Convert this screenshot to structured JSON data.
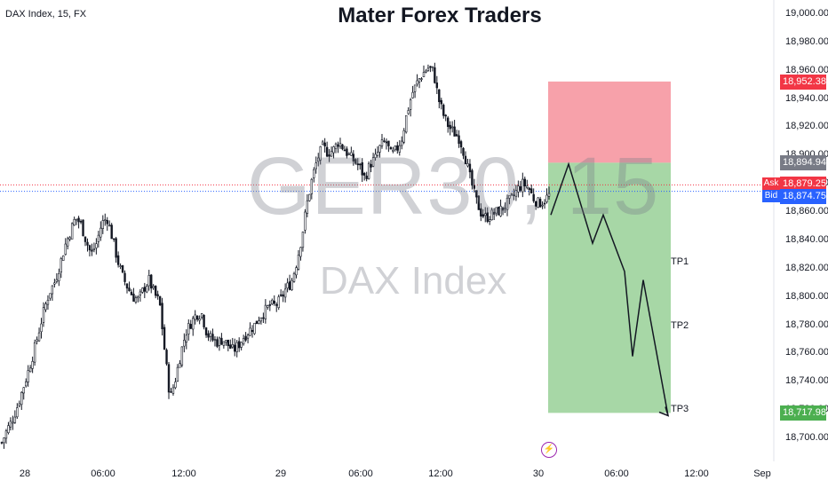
{
  "header": {
    "symbol": "DAX Index, 15, FX",
    "title": "Mater Forex Traders"
  },
  "watermark": {
    "ticker": "GER30, 15",
    "name": "DAX Index"
  },
  "targets": [
    "TP1",
    "TP2",
    "TP3"
  ],
  "price_labels": {
    "stop": "18,952.38",
    "entry": "18,894.94",
    "ask_tag": "Ask",
    "ask": "18,879.25",
    "bid_tag": "Bid",
    "bid": "18,874.75",
    "target": "18,717.98"
  },
  "event_icon": "lightning-icon",
  "colors": {
    "up": "#131722",
    "risk_zone": "#f7a1aa",
    "reward_zone": "#a7d7a6",
    "stop_box": "#f23645",
    "entry_box": "#787b86",
    "target_box": "#4caf50",
    "ask": "#f23645",
    "bid": "#2962ff"
  },
  "chart_data": {
    "type": "candlestick",
    "y_ticks": [
      "19,000.00",
      "18,980.00",
      "18,960.00",
      "18,940.00",
      "18,920.00",
      "18,900.00",
      "18,880.00",
      "18,860.00",
      "18,840.00",
      "18,820.00",
      "18,800.00",
      "18,780.00",
      "18,760.00",
      "18,740.00",
      "18,720.00",
      "18,700.00"
    ],
    "ylim": [
      18700,
      19000
    ],
    "x_ticks": [
      "28",
      "06:00",
      "12:00",
      "29",
      "06:00",
      "12:00",
      "30",
      "06:00",
      "12:00",
      "Sep"
    ],
    "close_path": [
      18697,
      18706,
      18713,
      18723,
      18735,
      18747,
      18760,
      18775,
      18790,
      18803,
      18810,
      18822,
      18836,
      18846,
      18856,
      18852,
      18840,
      18830,
      18838,
      18852,
      18856,
      18842,
      18826,
      18814,
      18806,
      18800,
      18798,
      18806,
      18812,
      18802,
      18796,
      18760,
      18728,
      18742,
      18760,
      18775,
      18782,
      18788,
      18788,
      18774,
      18770,
      18768,
      18770,
      18766,
      18762,
      18766,
      18772,
      18776,
      18780,
      18786,
      18790,
      18794,
      18794,
      18798,
      18806,
      18810,
      18824,
      18842,
      18866,
      18884,
      18898,
      18906,
      18902,
      18904,
      18910,
      18905,
      18900,
      18896,
      18892,
      18884,
      18894,
      18898,
      18907,
      18910,
      18900,
      18904,
      18912,
      18930,
      18944,
      18952,
      18958,
      18962,
      18960,
      18940,
      18928,
      18920,
      18916,
      18912,
      18900,
      18884,
      18870,
      18860,
      18856,
      18858,
      18860,
      18862,
      18866,
      18870,
      18876,
      18880,
      18878,
      18870,
      18866,
      18868,
      18872
    ],
    "position": {
      "direction": "short",
      "entry": 18894.94,
      "stop": 18952.38,
      "target": 18717.98
    },
    "projection_path": [
      18858,
      18894,
      18838,
      18858,
      18818,
      18758,
      18812,
      18716
    ],
    "ask": 18879.25,
    "bid": 18874.75
  }
}
